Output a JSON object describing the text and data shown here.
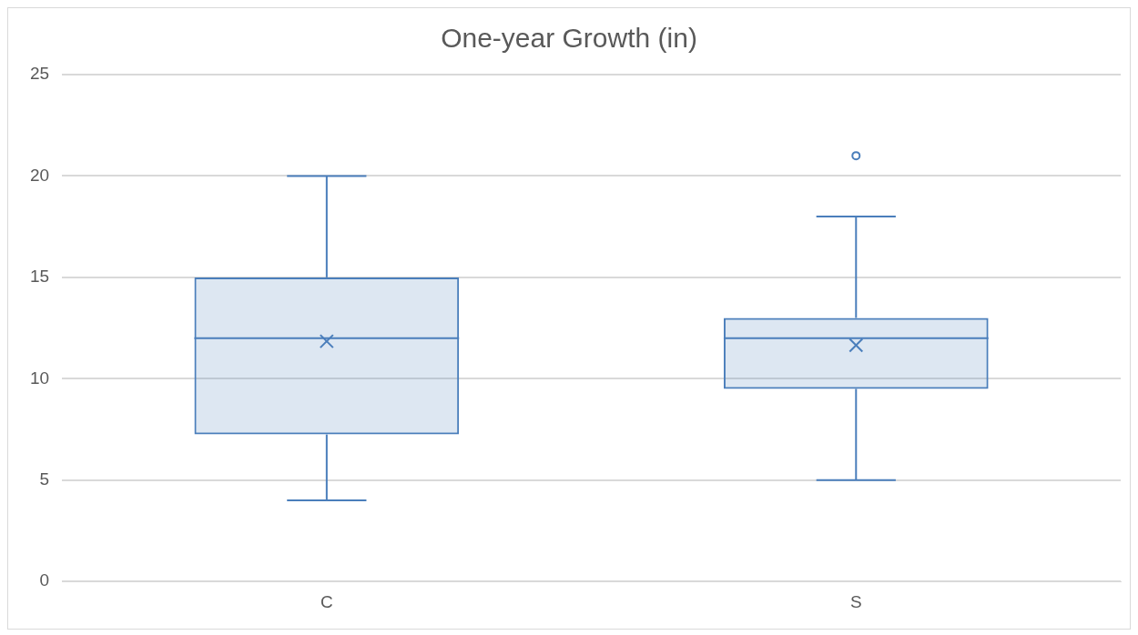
{
  "chart_data": {
    "type": "box",
    "title": "One-year Growth (in)",
    "categories": [
      "C",
      "S"
    ],
    "color": "#4a7ebb",
    "boxes": [
      {
        "low": 4,
        "q1": 7.25,
        "median": 12,
        "q3": 15,
        "high": 20,
        "mean": 11.85
      },
      {
        "low": 5,
        "q1": 9.5,
        "median": 12,
        "q3": 13,
        "high": 18,
        "mean": 11.65,
        "outliers": [
          21
        ]
      }
    ],
    "ylim": [
      0,
      25
    ],
    "yticks": [
      0,
      5,
      10,
      15,
      20,
      25
    ],
    "grid": "y"
  }
}
